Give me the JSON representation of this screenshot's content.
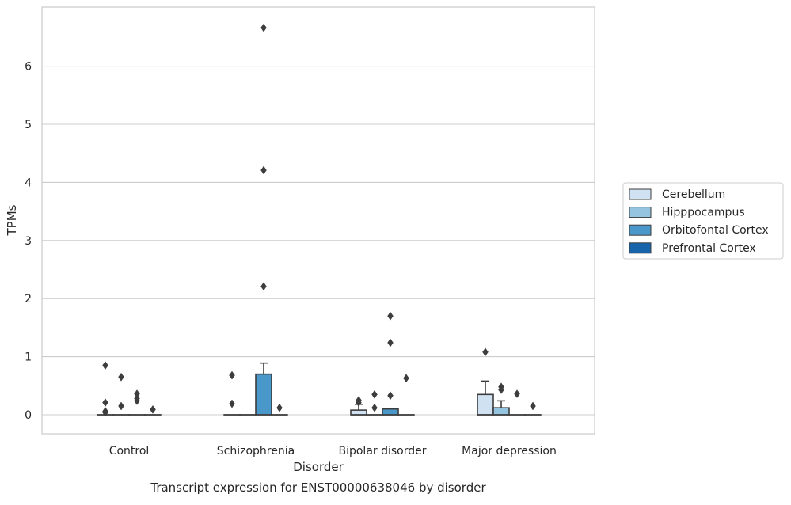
{
  "chart_data": {
    "type": "boxplot",
    "caption": "Transcript expression for ENST00000638046 by disorder",
    "xlabel": "Disorder",
    "ylabel": "TPMs",
    "ylim": [
      -0.33,
      7.0
    ],
    "yticks": [
      0,
      1,
      2,
      3,
      4,
      5,
      6
    ],
    "grid": "horizontal",
    "legend_position": "right",
    "categories": [
      "Control",
      "Schizophrenia",
      "Bipolar disorder",
      "Major depression"
    ],
    "series": [
      {
        "name": "Cerebellum",
        "color": "#d0e1f2",
        "boxes": [
          {
            "q1": 0,
            "median": 0,
            "q3": 0,
            "whisker_low": 0,
            "whisker_high": 0,
            "outliers": [
              0.85,
              0.21,
              0.06,
              0.04
            ]
          },
          {
            "q1": 0,
            "median": 0,
            "q3": 0,
            "whisker_low": 0,
            "whisker_high": 0,
            "outliers": [
              0.68,
              0.19
            ]
          },
          {
            "q1": 0,
            "median": 0,
            "q3": 0.08,
            "whisker_low": 0,
            "whisker_high": 0.18,
            "outliers": [
              0.25,
              0.21
            ]
          },
          {
            "q1": 0,
            "median": 0,
            "q3": 0.35,
            "whisker_low": 0,
            "whisker_high": 0.58,
            "outliers": [
              1.08
            ]
          }
        ]
      },
      {
        "name": "Hipppocampus",
        "color": "#94c4df",
        "boxes": [
          {
            "q1": 0,
            "median": 0,
            "q3": 0,
            "whisker_low": 0,
            "whisker_high": 0,
            "outliers": [
              0.65,
              0.15
            ]
          },
          {
            "q1": 0,
            "median": 0,
            "q3": 0,
            "whisker_low": 0,
            "whisker_high": 0,
            "outliers": []
          },
          {
            "q1": 0,
            "median": 0,
            "q3": 0,
            "whisker_low": 0,
            "whisker_high": 0,
            "outliers": [
              0.35,
              0.12
            ]
          },
          {
            "q1": 0,
            "median": 0,
            "q3": 0.12,
            "whisker_low": 0,
            "whisker_high": 0.24,
            "outliers": [
              0.48,
              0.43
            ]
          }
        ]
      },
      {
        "name": "Orbitofontal Cortex",
        "color": "#4a98c9",
        "boxes": [
          {
            "q1": 0,
            "median": 0,
            "q3": 0,
            "whisker_low": 0,
            "whisker_high": 0,
            "outliers": [
              0.36,
              0.28,
              0.24
            ]
          },
          {
            "q1": 0,
            "median": 0,
            "q3": 0.7,
            "whisker_low": 0,
            "whisker_high": 0.89,
            "outliers": [
              6.66,
              4.21,
              2.21
            ]
          },
          {
            "q1": 0,
            "median": 0,
            "q3": 0.1,
            "whisker_low": 0,
            "whisker_high": 0.11,
            "outliers": [
              1.7,
              1.24,
              0.33
            ]
          },
          {
            "q1": 0,
            "median": 0,
            "q3": 0,
            "whisker_low": 0,
            "whisker_high": 0,
            "outliers": [
              0.36
            ]
          }
        ]
      },
      {
        "name": "Prefrontal Cortex",
        "color": "#1764ab",
        "boxes": [
          {
            "q1": 0,
            "median": 0,
            "q3": 0,
            "whisker_low": 0,
            "whisker_high": 0,
            "outliers": [
              0.09
            ]
          },
          {
            "q1": 0,
            "median": 0,
            "q3": 0,
            "whisker_low": 0,
            "whisker_high": 0,
            "outliers": [
              0.12
            ]
          },
          {
            "q1": 0,
            "median": 0,
            "q3": 0,
            "whisker_low": 0,
            "whisker_high": 0,
            "outliers": [
              0.63
            ]
          },
          {
            "q1": 0,
            "median": 0,
            "q3": 0,
            "whisker_low": 0,
            "whisker_high": 0,
            "outliers": [
              0.15
            ]
          }
        ]
      }
    ]
  }
}
